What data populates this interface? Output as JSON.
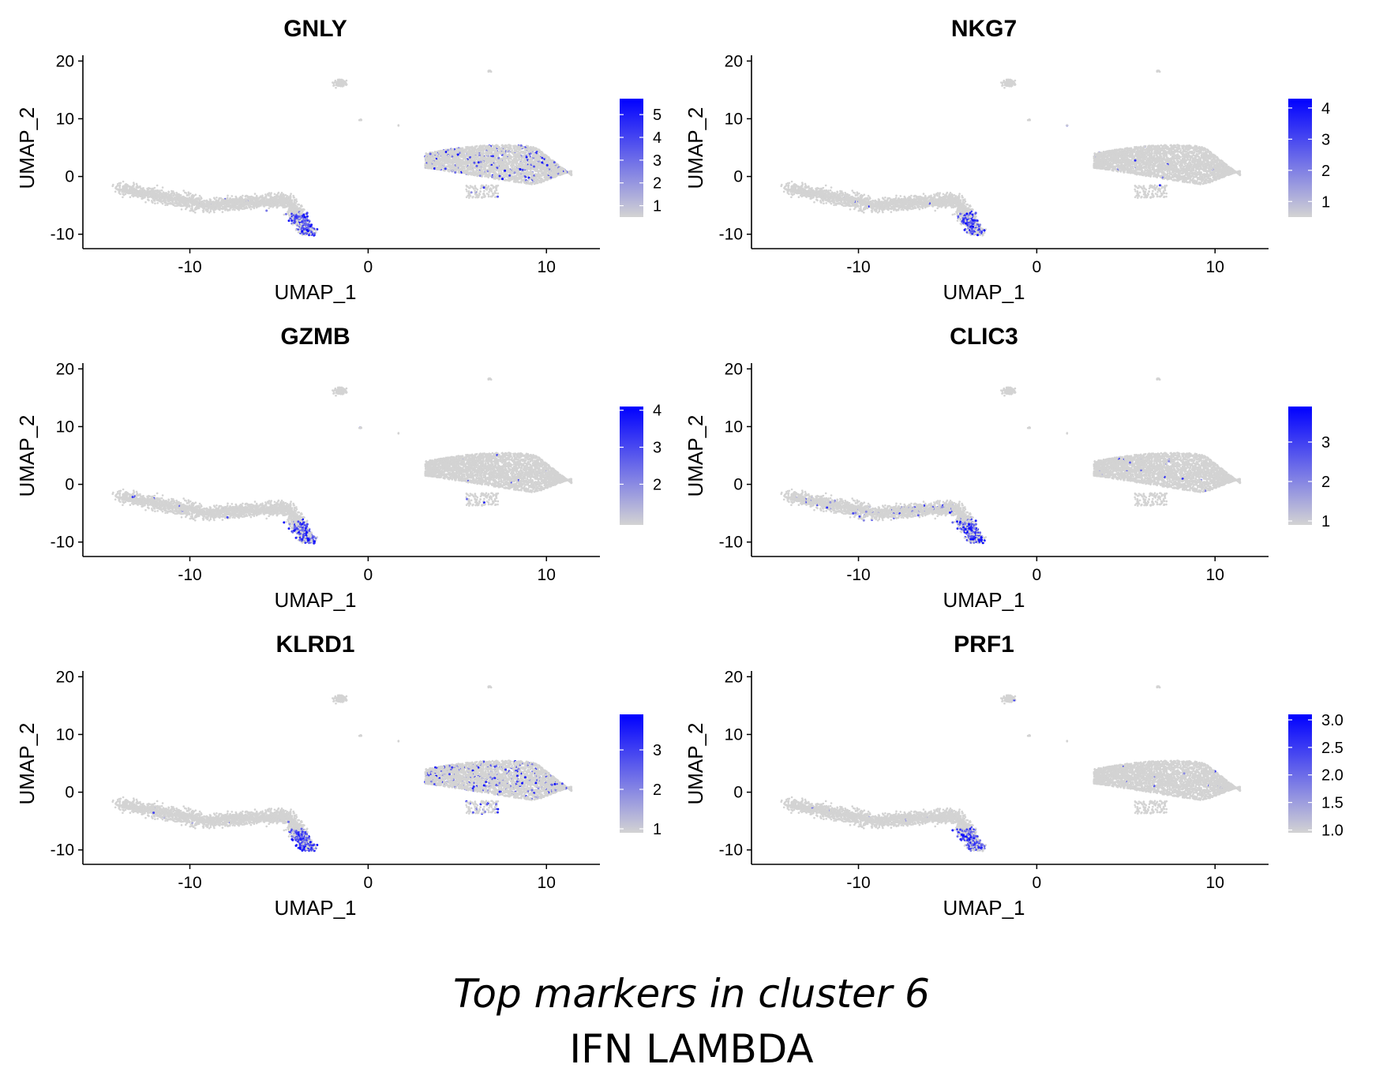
{
  "caption": {
    "title": "Top markers in cluster 6",
    "subtitle": "IFN LAMBDA"
  },
  "colors": {
    "low": "#d3d3d3",
    "high": "#0000ff",
    "axis": "#000000"
  },
  "chart_data": [
    {
      "type": "scatter",
      "title": "GNLY",
      "xlabel": "UMAP_1",
      "ylabel": "UMAP_2",
      "xlim": [
        -16,
        13
      ],
      "ylim": [
        -12.5,
        21
      ],
      "xticks": [
        -10,
        0,
        10
      ],
      "yticks": [
        -10,
        0,
        10,
        20
      ],
      "legend": {
        "placement": "right",
        "ticks": [
          "1",
          "2",
          "3",
          "4",
          "5"
        ],
        "range": [
          0.5,
          5.7
        ]
      },
      "high_expression_regions": [
        "lower tail of left cluster near (-4, -8)",
        "scattered in right cluster"
      ]
    },
    {
      "type": "scatter",
      "title": "NKG7",
      "xlabel": "UMAP_1",
      "ylabel": "UMAP_2",
      "xlim": [
        -16,
        13
      ],
      "ylim": [
        -12.5,
        21
      ],
      "xticks": [
        -10,
        0,
        10
      ],
      "yticks": [
        -10,
        0,
        10,
        20
      ],
      "legend": {
        "placement": "right",
        "ticks": [
          "1",
          "2",
          "3",
          "4"
        ],
        "range": [
          0.5,
          4.3
        ]
      },
      "high_expression_regions": [
        "lower tail of left cluster near (-4, -8)"
      ]
    },
    {
      "type": "scatter",
      "title": "GZMB",
      "xlabel": "UMAP_1",
      "ylabel": "UMAP_2",
      "xlim": [
        -16,
        13
      ],
      "ylim": [
        -12.5,
        21
      ],
      "xticks": [
        -10,
        0,
        10
      ],
      "yticks": [
        -10,
        0,
        10,
        20
      ],
      "legend": {
        "placement": "right",
        "ticks": [
          "2",
          "3",
          "4"
        ],
        "range": [
          0.9,
          4.1
        ]
      },
      "high_expression_regions": [
        "lower tail of left cluster near (-4, -9)"
      ]
    },
    {
      "type": "scatter",
      "title": "CLIC3",
      "xlabel": "UMAP_1",
      "ylabel": "UMAP_2",
      "xlim": [
        -16,
        13
      ],
      "ylim": [
        -12.5,
        21
      ],
      "xticks": [
        -10,
        0,
        10
      ],
      "yticks": [
        -10,
        0,
        10,
        20
      ],
      "legend": {
        "placement": "right",
        "ticks": [
          "1",
          "2",
          "3"
        ],
        "range": [
          0.9,
          3.9
        ]
      },
      "high_expression_regions": [
        "lower tail of left cluster near (-4, -8)"
      ]
    },
    {
      "type": "scatter",
      "title": "KLRD1",
      "xlabel": "UMAP_1",
      "ylabel": "UMAP_2",
      "xlim": [
        -16,
        13
      ],
      "ylim": [
        -12.5,
        21
      ],
      "xticks": [
        -10,
        0,
        10
      ],
      "yticks": [
        -10,
        0,
        10,
        20
      ],
      "legend": {
        "placement": "right",
        "ticks": [
          "1",
          "2",
          "3"
        ],
        "range": [
          0.9,
          3.9
        ]
      },
      "high_expression_regions": [
        "lower tail of left cluster near (-4, -9)",
        "scattered in right cluster"
      ]
    },
    {
      "type": "scatter",
      "title": "PRF1",
      "xlabel": "UMAP_1",
      "ylabel": "UMAP_2",
      "xlim": [
        -16,
        13
      ],
      "ylim": [
        -12.5,
        21
      ],
      "xticks": [
        -10,
        0,
        10
      ],
      "yticks": [
        -10,
        0,
        10,
        20
      ],
      "legend": {
        "placement": "right",
        "ticks": [
          "1.0",
          "1.5",
          "2.0",
          "2.5",
          "3.0"
        ],
        "range": [
          0.95,
          3.1
        ]
      },
      "high_expression_regions": [
        "lower tail of left cluster near (-4, -9)"
      ]
    }
  ]
}
